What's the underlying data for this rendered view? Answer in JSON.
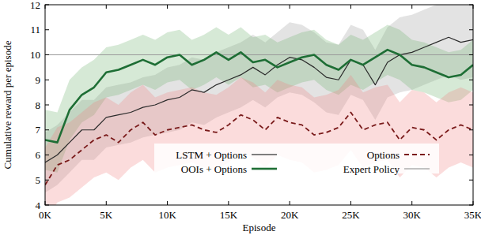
{
  "chart_data": {
    "type": "line",
    "x_label": "Episode",
    "y_label": "Cumulative reward per episode",
    "x": [
      0,
      1000,
      2000,
      3000,
      4000,
      5000,
      6000,
      7000,
      8000,
      9000,
      10000,
      11000,
      12000,
      13000,
      14000,
      15000,
      16000,
      17000,
      18000,
      19000,
      20000,
      21000,
      22000,
      23000,
      24000,
      25000,
      26000,
      27000,
      28000,
      29000,
      30000,
      31000,
      32000,
      33000,
      34000,
      35000
    ],
    "xlim": [
      0,
      35000
    ],
    "xticks": [
      {
        "value": 0,
        "label": "0K"
      },
      {
        "value": 5000,
        "label": "5K"
      },
      {
        "value": 10000,
        "label": "10K"
      },
      {
        "value": 15000,
        "label": "15K"
      },
      {
        "value": 20000,
        "label": "20K"
      },
      {
        "value": 25000,
        "label": "25K"
      },
      {
        "value": 30000,
        "label": "30K"
      },
      {
        "value": 35000,
        "label": "35K"
      }
    ],
    "ylim": [
      4,
      12
    ],
    "yticks": [
      4,
      5,
      6,
      7,
      8,
      9,
      10,
      11,
      12
    ],
    "grid": false,
    "legend": "bottom",
    "series": [
      {
        "name": "LSTM + Options",
        "color": "#2b2b2b",
        "line_style": "solid",
        "values": [
          5.7,
          6.0,
          6.5,
          7.0,
          7.0,
          7.5,
          7.6,
          7.7,
          7.9,
          8.0,
          8.2,
          8.3,
          8.6,
          8.5,
          8.8,
          9.0,
          9.2,
          9.5,
          9.2,
          9.6,
          9.9,
          9.8,
          9.5,
          9.1,
          9.0,
          9.8,
          9.6,
          8.8,
          9.7,
          10.0,
          10.1,
          10.3,
          10.5,
          10.7,
          10.5,
          10.6
        ],
        "error": [
          1.2,
          1.2,
          1.2,
          1.2,
          1.2,
          1.2,
          1.2,
          1.2,
          1.2,
          1.2,
          1.3,
          1.3,
          1.3,
          1.3,
          1.3,
          1.3,
          1.3,
          1.3,
          1.3,
          1.3,
          1.4,
          1.4,
          1.4,
          1.4,
          1.4,
          1.4,
          1.4,
          1.4,
          1.4,
          1.5,
          1.5,
          1.5,
          1.5,
          1.5,
          1.5,
          1.5
        ]
      },
      {
        "name": "OOIs + Options",
        "color": "#1e6e35",
        "line_style": "solid",
        "values": [
          6.6,
          6.5,
          7.8,
          8.4,
          8.7,
          9.3,
          9.4,
          9.6,
          9.8,
          9.6,
          9.9,
          10.0,
          9.6,
          9.8,
          10.1,
          9.8,
          10.1,
          9.7,
          9.8,
          9.5,
          9.7,
          9.9,
          10.0,
          9.6,
          9.4,
          9.8,
          9.6,
          9.9,
          10.2,
          10.0,
          9.6,
          9.5,
          9.3,
          9.1,
          9.2,
          9.6
        ],
        "error": [
          1.2,
          1.2,
          1.2,
          1.1,
          1.1,
          1.0,
          1.0,
          1.0,
          1.0,
          1.0,
          1.0,
          1.0,
          1.0,
          1.0,
          1.0,
          1.0,
          1.0,
          1.0,
          1.0,
          1.0,
          1.0,
          1.0,
          1.0,
          1.0,
          1.0,
          1.0,
          1.0,
          1.0,
          1.0,
          1.0,
          1.0,
          1.0,
          1.0,
          1.0,
          1.0,
          1.0
        ]
      },
      {
        "name": "Options",
        "color": "#7a1b1b",
        "line_style": "dashed",
        "values": [
          4.8,
          5.6,
          5.8,
          6.2,
          6.6,
          6.8,
          6.5,
          7.0,
          7.3,
          6.8,
          7.0,
          7.1,
          7.2,
          7.0,
          6.9,
          7.2,
          7.6,
          7.4,
          7.0,
          7.5,
          7.3,
          7.2,
          6.8,
          6.9,
          7.1,
          7.7,
          7.0,
          7.2,
          7.3,
          6.6,
          7.1,
          7.0,
          6.6,
          7.0,
          7.2,
          7.0
        ],
        "error": [
          1.5,
          1.5,
          1.5,
          1.5,
          1.5,
          1.5,
          1.5,
          1.5,
          1.5,
          1.5,
          1.5,
          1.5,
          1.5,
          1.5,
          1.5,
          1.5,
          1.5,
          1.5,
          1.5,
          1.5,
          1.5,
          1.5,
          1.5,
          1.5,
          1.5,
          1.5,
          1.5,
          1.5,
          1.5,
          1.5,
          1.5,
          1.5,
          1.5,
          1.5,
          1.5,
          1.5
        ]
      },
      {
        "name": "Expert Policy",
        "color": "#999999",
        "line_style": "solid",
        "values": [
          10,
          10,
          10,
          10,
          10,
          10,
          10,
          10,
          10,
          10,
          10,
          10,
          10,
          10,
          10,
          10,
          10,
          10,
          10,
          10,
          10,
          10,
          10,
          10,
          10,
          10,
          10,
          10,
          10,
          10,
          10,
          10,
          10,
          10,
          10,
          10
        ]
      }
    ]
  }
}
